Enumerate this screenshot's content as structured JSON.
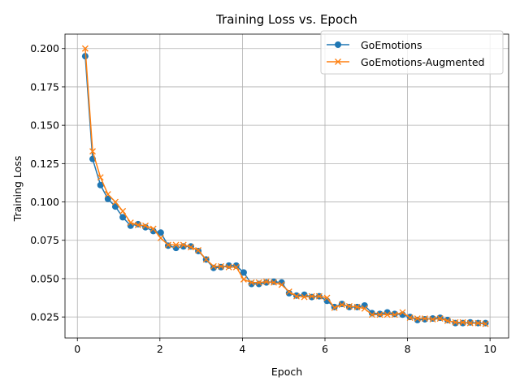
{
  "chart_data": {
    "type": "line",
    "title": "Training Loss vs. Epoch",
    "xlabel": "Epoch",
    "ylabel": "Training Loss",
    "xlim": [
      -0.3,
      10.45
    ],
    "ylim": [
      0.0113,
      0.2094
    ],
    "xticks": [
      0,
      2,
      4,
      6,
      8,
      10
    ],
    "xtick_labels": [
      "0",
      "2",
      "4",
      "6",
      "8",
      "10"
    ],
    "yticks": [
      0.025,
      0.05,
      0.075,
      0.1,
      0.125,
      0.15,
      0.175,
      0.2
    ],
    "ytick_labels": [
      "0.025",
      "0.050",
      "0.075",
      "0.100",
      "0.125",
      "0.150",
      "0.175",
      "0.200"
    ],
    "grid": true,
    "legend_position": "upper right",
    "x": [
      0.19,
      0.37,
      0.56,
      0.74,
      0.92,
      1.1,
      1.29,
      1.47,
      1.65,
      1.84,
      2.02,
      2.2,
      2.39,
      2.57,
      2.75,
      2.93,
      3.12,
      3.3,
      3.48,
      3.67,
      3.85,
      4.03,
      4.22,
      4.4,
      4.58,
      4.76,
      4.95,
      5.13,
      5.31,
      5.5,
      5.68,
      5.86,
      6.05,
      6.23,
      6.41,
      6.59,
      6.78,
      6.96,
      7.14,
      7.33,
      7.51,
      7.69,
      7.88,
      8.06,
      8.24,
      8.42,
      8.61,
      8.79,
      8.97,
      9.16,
      9.34,
      9.52,
      9.71,
      9.89
    ],
    "series": [
      {
        "name": "GoEmotions",
        "color": "#1f77b4",
        "marker": "circle",
        "values": [
          0.195,
          0.128,
          0.111,
          0.102,
          0.097,
          0.09,
          0.0845,
          0.0855,
          0.0835,
          0.081,
          0.08,
          0.0715,
          0.07,
          0.071,
          0.071,
          0.068,
          0.0625,
          0.057,
          0.0575,
          0.0585,
          0.0585,
          0.054,
          0.0465,
          0.0465,
          0.0475,
          0.048,
          0.0475,
          0.0405,
          0.039,
          0.0395,
          0.038,
          0.0385,
          0.0355,
          0.0315,
          0.0335,
          0.0315,
          0.0315,
          0.0325,
          0.0275,
          0.027,
          0.028,
          0.027,
          0.0265,
          0.025,
          0.023,
          0.0235,
          0.024,
          0.0245,
          0.023,
          0.021,
          0.021,
          0.0215,
          0.021,
          0.021
        ]
      },
      {
        "name": "GoEmotions-Augmented",
        "color": "#ff7f0e",
        "marker": "x",
        "values": [
          0.2,
          0.133,
          0.116,
          0.105,
          0.1,
          0.094,
          0.0865,
          0.085,
          0.0845,
          0.0825,
          0.0765,
          0.072,
          0.072,
          0.072,
          0.0705,
          0.0685,
          0.0625,
          0.058,
          0.058,
          0.0575,
          0.0575,
          0.0495,
          0.0475,
          0.0475,
          0.048,
          0.0475,
          0.046,
          0.0415,
          0.0385,
          0.038,
          0.0385,
          0.0385,
          0.0375,
          0.031,
          0.033,
          0.032,
          0.0315,
          0.0305,
          0.0265,
          0.0265,
          0.0265,
          0.0265,
          0.028,
          0.0245,
          0.024,
          0.024,
          0.0235,
          0.024,
          0.0225,
          0.0215,
          0.0215,
          0.021,
          0.021,
          0.0205
        ]
      }
    ]
  }
}
